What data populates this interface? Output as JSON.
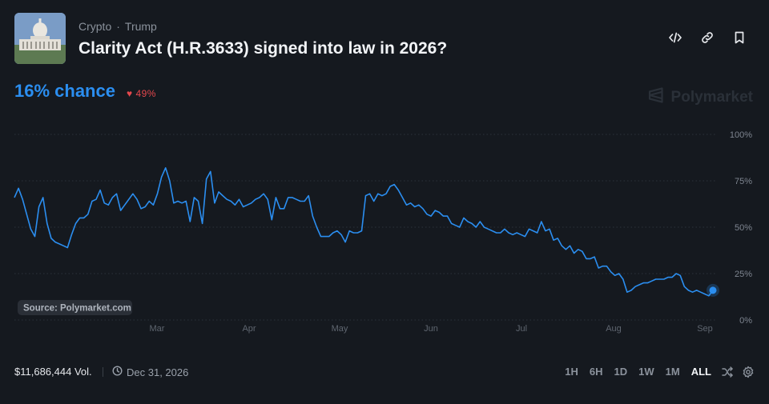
{
  "header": {
    "category": "Crypto",
    "subcategory": "Trump",
    "separator": "·",
    "title": "Clarity Act (H.R.3633) signed into law in 2026?",
    "thumbnail_icon": "capitol-building-icon",
    "actions": [
      "embed-icon",
      "link-icon",
      "bookmark-icon"
    ]
  },
  "summary": {
    "chance_text": "16% chance",
    "delta_text": "49%",
    "delta_direction": "down",
    "brand": "Polymarket"
  },
  "chart_data": {
    "type": "line",
    "y_ticks": [
      "100%",
      "75%",
      "50%",
      "25%",
      "0%"
    ],
    "x_ticks": [
      "Mar",
      "Apr",
      "May",
      "Jun",
      "Jul",
      "Aug",
      "Sep"
    ],
    "ylim": [
      0,
      100
    ],
    "source_label": "Source: Polymarket.com",
    "line_color": "#2b8ef0",
    "grid": true,
    "series": [
      {
        "values": [
          66,
          71,
          65,
          57,
          49,
          45,
          61,
          66,
          52,
          44,
          42,
          41,
          40,
          39,
          46,
          52,
          55,
          55,
          57,
          64,
          65,
          70,
          63,
          62,
          66,
          68,
          59,
          62,
          65,
          68,
          65,
          60,
          61,
          64,
          62,
          68,
          77,
          82,
          75,
          63,
          64,
          63,
          64,
          53,
          66,
          64,
          52,
          76,
          80,
          63,
          69,
          67,
          65,
          64,
          62,
          65,
          61,
          62,
          63,
          65,
          66,
          68,
          65,
          54,
          66,
          60,
          60,
          66,
          66,
          65,
          64,
          64,
          67,
          56,
          50,
          45,
          45,
          45,
          47,
          48,
          46,
          42,
          48,
          47,
          47,
          48,
          67,
          68,
          64,
          68,
          67,
          68,
          72,
          73,
          70,
          66,
          62,
          63,
          61,
          62,
          60,
          57,
          56,
          59,
          58,
          56,
          56,
          52,
          51,
          50,
          55,
          53,
          52,
          50,
          53,
          50,
          49,
          48,
          47,
          47,
          49,
          47,
          46,
          47,
          46,
          45,
          49,
          48,
          47,
          53,
          48,
          49,
          43,
          44,
          40,
          38,
          40,
          36,
          38,
          37,
          33,
          33,
          34,
          28,
          29,
          29,
          26,
          24,
          25,
          22,
          15,
          16,
          18,
          19,
          20,
          20,
          21,
          22,
          22,
          22,
          23,
          23,
          25,
          24,
          18,
          16,
          15,
          16,
          15,
          14,
          13,
          16
        ]
      }
    ]
  },
  "footer": {
    "volume": "$11,686,444 Vol.",
    "end_date": "Dec 31, 2026",
    "ranges": [
      "1H",
      "6H",
      "1D",
      "1W",
      "1M",
      "ALL"
    ],
    "active_range": "ALL"
  }
}
